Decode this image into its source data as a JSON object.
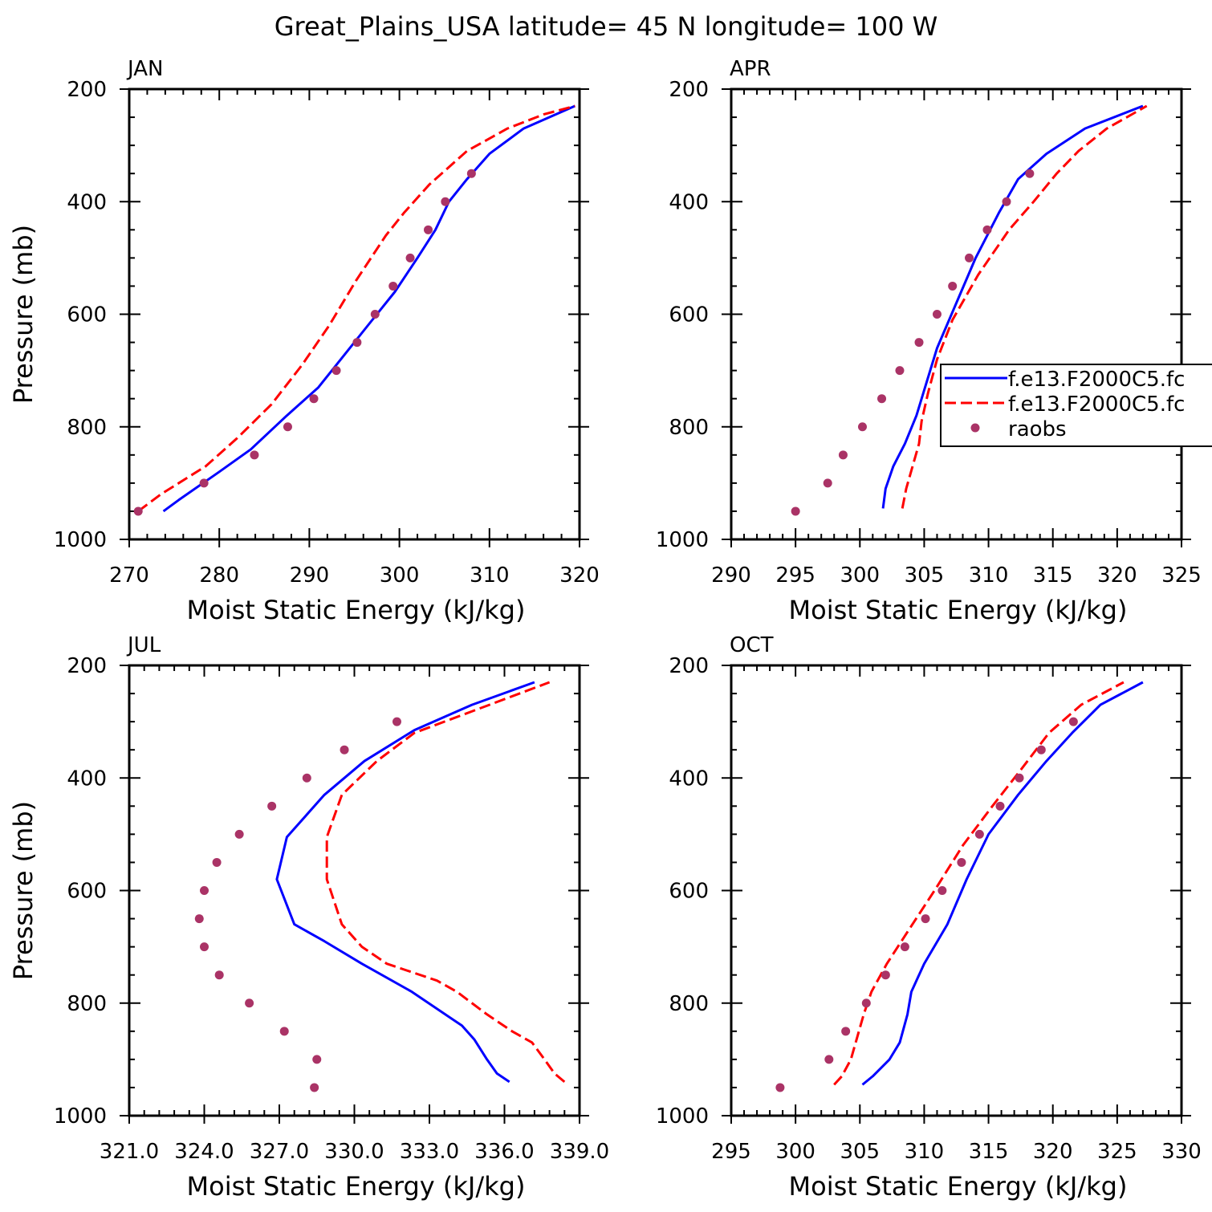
{
  "figure": {
    "title": "Great_Plains_USA  latitude= 45 N longitude= 100 W"
  },
  "legend": {
    "placement": "right-middle of APR panel",
    "entries": [
      {
        "label": "f.e13.F2000C5.fc",
        "style": "solid",
        "color": "#0000ff"
      },
      {
        "label": "f.e13.F2000C5.fc",
        "style": "dashed",
        "color": "#ff0000"
      },
      {
        "label": "raobs",
        "style": "dot",
        "color": "#aa3366"
      }
    ]
  },
  "colors": {
    "model1": "#0000ff",
    "model2": "#ff0000",
    "obs": "#aa3366"
  },
  "chart_data": [
    {
      "type": "line",
      "title": "JAN",
      "xlabel": "Moist Static Energy (kJ/kg)",
      "ylabel": "Pressure (mb)",
      "xlim": [
        270,
        320
      ],
      "ylim": [
        1000,
        200
      ],
      "xticks": [
        "270",
        "280",
        "290",
        "300",
        "310",
        "320"
      ],
      "xtick_values": [
        270,
        280,
        290,
        300,
        310,
        320
      ],
      "yticks": [
        "200",
        "400",
        "600",
        "800",
        "1000"
      ],
      "ytick_values": [
        200,
        400,
        600,
        800,
        1000
      ],
      "grid": false,
      "series": [
        {
          "name": "f.e13.F2000C5.fc",
          "style": "solid",
          "p": [
            950,
            930,
            880,
            840,
            780,
            730,
            680,
            620,
            560,
            500,
            450,
            400,
            360,
            315,
            270,
            230
          ],
          "x": [
            273.8,
            275.5,
            280.0,
            283.5,
            287.5,
            291.0,
            293.5,
            296.5,
            299.5,
            302.0,
            304.0,
            305.5,
            307.5,
            310.0,
            313.8,
            319.5
          ]
        },
        {
          "name": "f.e13.F2000C5.fc",
          "style": "dashed",
          "p": [
            950,
            920,
            870,
            820,
            760,
            690,
            620,
            540,
            460,
            420,
            370,
            310,
            270,
            245,
            230
          ],
          "x": [
            271.0,
            273.5,
            278.5,
            282.0,
            285.8,
            289.2,
            292.2,
            295.2,
            298.5,
            300.5,
            303.3,
            307.5,
            312.0,
            316.0,
            319.5
          ]
        },
        {
          "name": "raobs",
          "style": "dot",
          "p": [
            950,
            900,
            850,
            800,
            750,
            700,
            650,
            600,
            550,
            500,
            450,
            400,
            350
          ],
          "x": [
            271.0,
            278.3,
            283.9,
            287.6,
            290.5,
            293.0,
            295.3,
            297.3,
            299.3,
            301.2,
            303.2,
            305.1,
            308.0
          ]
        }
      ]
    },
    {
      "type": "line",
      "title": "APR",
      "xlabel": "Moist Static Energy (kJ/kg)",
      "ylabel": "",
      "xlim": [
        290,
        325
      ],
      "ylim": [
        1000,
        200
      ],
      "xticks": [
        "290",
        "295",
        "300",
        "305",
        "310",
        "315",
        "320",
        "325"
      ],
      "xtick_values": [
        290,
        295,
        300,
        305,
        310,
        315,
        320,
        325
      ],
      "yticks": [
        "200",
        "400",
        "600",
        "800",
        "1000"
      ],
      "ytick_values": [
        200,
        400,
        600,
        800,
        1000
      ],
      "grid": false,
      "series": [
        {
          "name": "f.e13.F2000C5.fc",
          "style": "solid",
          "p": [
            945,
            910,
            870,
            830,
            780,
            720,
            660,
            580,
            500,
            420,
            360,
            315,
            270,
            230
          ],
          "x": [
            301.8,
            302.0,
            302.6,
            303.5,
            304.4,
            305.2,
            306.0,
            307.5,
            309.0,
            310.8,
            312.3,
            314.5,
            317.5,
            322.0
          ]
        },
        {
          "name": "f.e13.F2000C5.fc",
          "style": "dashed",
          "p": [
            945,
            910,
            870,
            830,
            790,
            740,
            680,
            610,
            530,
            450,
            400,
            350,
            310,
            270,
            230
          ],
          "x": [
            303.3,
            303.6,
            304.1,
            304.6,
            304.8,
            305.3,
            306.0,
            307.2,
            309.2,
            311.6,
            313.5,
            315.3,
            317.0,
            319.2,
            322.3
          ]
        },
        {
          "name": "raobs",
          "style": "dot",
          "p": [
            950,
            900,
            850,
            800,
            750,
            700,
            650,
            600,
            550,
            500,
            450,
            400,
            350
          ],
          "x": [
            295.0,
            297.5,
            298.7,
            300.2,
            301.7,
            303.1,
            304.6,
            306.0,
            307.2,
            308.5,
            309.9,
            311.4,
            313.2
          ]
        }
      ]
    },
    {
      "type": "line",
      "title": "JUL",
      "xlabel": "Moist Static Energy (kJ/kg)",
      "ylabel": "Pressure (mb)",
      "xlim": [
        321,
        339
      ],
      "ylim": [
        1000,
        200
      ],
      "xticks": [
        "321.0",
        "324.0",
        "327.0",
        "330.0",
        "333.0",
        "336.0",
        "339.0"
      ],
      "xtick_values": [
        321,
        324,
        327,
        330,
        333,
        336,
        339
      ],
      "yticks": [
        "200",
        "400",
        "600",
        "800",
        "1000"
      ],
      "ytick_values": [
        200,
        400,
        600,
        800,
        1000
      ],
      "grid": false,
      "series": [
        {
          "name": "f.e13.F2000C5.fc",
          "style": "solid",
          "p": [
            940,
            925,
            900,
            865,
            840,
            780,
            730,
            690,
            660,
            580,
            505,
            430,
            370,
            315,
            270,
            230
          ],
          "x": [
            336.2,
            335.7,
            335.3,
            334.8,
            334.3,
            332.3,
            330.3,
            328.8,
            327.6,
            326.9,
            327.3,
            328.8,
            330.4,
            332.4,
            334.7,
            337.2
          ]
        },
        {
          "name": "f.e13.F2000C5.fc",
          "style": "dashed",
          "p": [
            940,
            925,
            900,
            870,
            850,
            820,
            780,
            760,
            730,
            700,
            660,
            580,
            505,
            430,
            370,
            320,
            270,
            230
          ],
          "x": [
            338.4,
            338.0,
            337.6,
            337.1,
            336.3,
            335.3,
            334.1,
            333.3,
            331.3,
            330.3,
            329.5,
            328.9,
            328.9,
            329.5,
            330.9,
            332.4,
            335.4,
            337.8
          ]
        },
        {
          "name": "raobs",
          "style": "dot",
          "p": [
            950,
            900,
            850,
            800,
            750,
            700,
            650,
            600,
            550,
            500,
            450,
            400,
            350,
            300
          ],
          "x": [
            328.4,
            328.5,
            327.2,
            325.8,
            324.6,
            324.0,
            323.8,
            324.0,
            324.5,
            325.4,
            326.7,
            328.1,
            329.6,
            331.7
          ]
        }
      ]
    },
    {
      "type": "line",
      "title": "OCT",
      "xlabel": "Moist Static Energy (kJ/kg)",
      "ylabel": "",
      "xlim": [
        295,
        330
      ],
      "ylim": [
        1000,
        200
      ],
      "xticks": [
        "295",
        "300",
        "305",
        "310",
        "315",
        "320",
        "325",
        "330"
      ],
      "xtick_values": [
        295,
        300,
        305,
        310,
        315,
        320,
        325,
        330
      ],
      "yticks": [
        "200",
        "400",
        "600",
        "800",
        "1000"
      ],
      "ytick_values": [
        200,
        400,
        600,
        800,
        1000
      ],
      "grid": false,
      "series": [
        {
          "name": "f.e13.F2000C5.fc",
          "style": "solid",
          "p": [
            945,
            930,
            900,
            870,
            820,
            780,
            730,
            660,
            580,
            500,
            430,
            370,
            320,
            270,
            230
          ],
          "x": [
            305.2,
            306.0,
            307.3,
            308.1,
            308.7,
            309.0,
            310.0,
            311.8,
            313.3,
            315.0,
            317.3,
            319.5,
            321.5,
            323.7,
            327.0
          ]
        },
        {
          "name": "f.e13.F2000C5.fc",
          "style": "dashed",
          "p": [
            945,
            930,
            900,
            860,
            820,
            780,
            730,
            670,
            600,
            520,
            450,
            380,
            320,
            270,
            230
          ],
          "x": [
            303.0,
            303.6,
            304.3,
            304.8,
            305.3,
            305.9,
            307.1,
            308.8,
            310.8,
            313.0,
            315.3,
            317.7,
            319.7,
            322.2,
            325.5
          ]
        },
        {
          "name": "raobs",
          "style": "dot",
          "p": [
            950,
            900,
            850,
            800,
            750,
            700,
            650,
            600,
            550,
            500,
            450,
            400,
            350,
            300
          ],
          "x": [
            298.8,
            302.6,
            303.9,
            305.5,
            307.0,
            308.5,
            310.1,
            311.4,
            312.9,
            314.3,
            315.9,
            317.4,
            319.1,
            321.6
          ]
        }
      ]
    }
  ]
}
